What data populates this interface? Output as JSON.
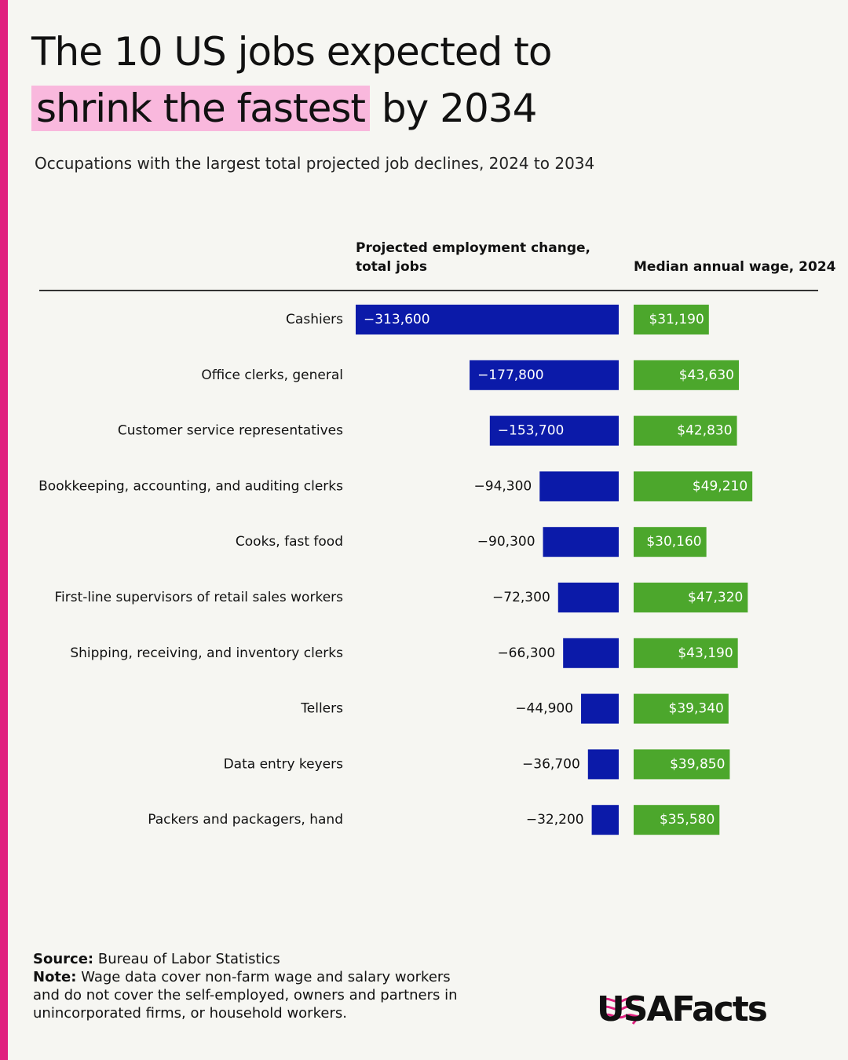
{
  "header": {
    "title_start": "The 10 US jobs expected to",
    "title_highlight": "shrink the fastest",
    "title_end": "by 2034",
    "subtitle": "Occupations with the largest total projected job declines, 2024 to 2034"
  },
  "chart_data": {
    "type": "bar",
    "orientation": "horizontal",
    "categories": [
      "Cashiers",
      "Office clerks, general",
      "Customer service representatives",
      "Bookkeeping, accounting, and auditing clerks",
      "Cooks, fast food",
      "First-line supervisors of retail sales workers",
      "Shipping, receiving, and inventory clerks",
      "Tellers",
      "Data entry keyers",
      "Packers and packagers, hand"
    ],
    "series": [
      {
        "name": "Projected employment change, total jobs",
        "color": "#0b1aa9",
        "xlim": [
          -313600,
          0
        ],
        "values": [
          -313600,
          -177800,
          -153700,
          -94300,
          -90300,
          -72300,
          -66300,
          -44900,
          -36700,
          -32200
        ],
        "value_labels": [
          "−313,600",
          "−177,800",
          "−153,700",
          "−94,300",
          "−90,300",
          "−72,300",
          "−66,300",
          "−44,900",
          "−36,700",
          "−32,200"
        ]
      },
      {
        "name": "Median annual wage, 2024",
        "color": "#4ca72c",
        "xlim": [
          0,
          76500
        ],
        "values": [
          31190,
          43630,
          42830,
          49210,
          30160,
          47320,
          43190,
          39340,
          39850,
          35580
        ],
        "value_labels": [
          "$31,190",
          "$43,630",
          "$42,830",
          "$49,210",
          "$30,160",
          "$47,320",
          "$43,190",
          "$39,340",
          "$39,850",
          "$35,580"
        ]
      }
    ]
  },
  "footer": {
    "source_label": "Source:",
    "source": "Bureau of Labor Statistics",
    "note_label": "Note:",
    "note": "Wage data cover non-farm wage and salary workers and do not cover the self-employed, owners and partners in unincorporated firms, or household workers.",
    "logo": "USAFacts"
  }
}
